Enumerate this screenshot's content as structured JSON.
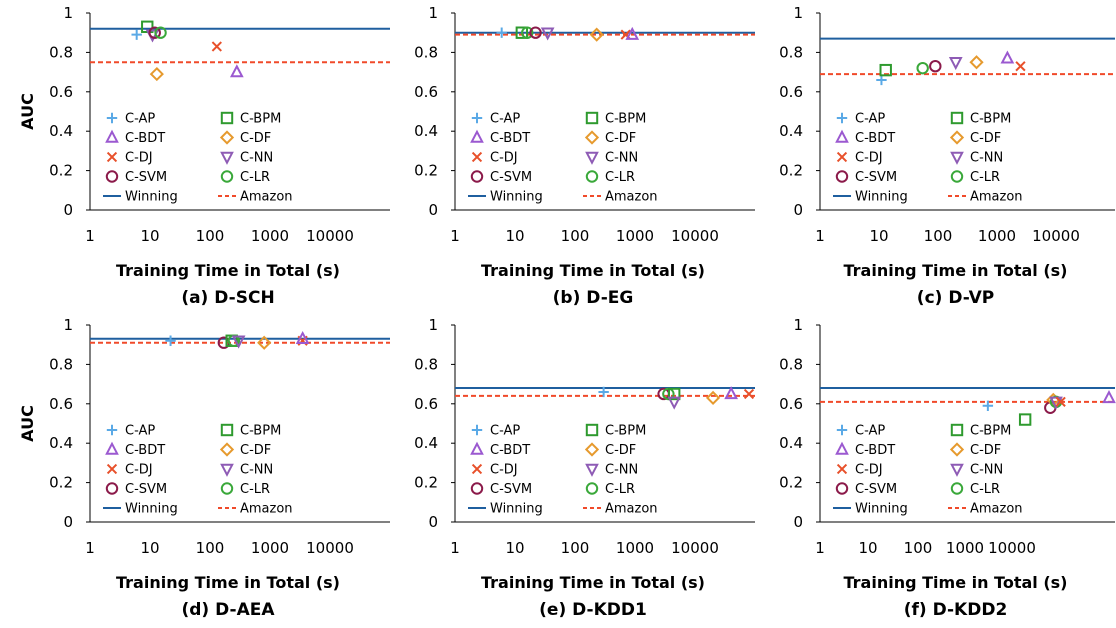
{
  "styles": {
    "C-AP": {
      "marker": "plus",
      "color": "#5aa9e6"
    },
    "C-BPM": {
      "marker": "square",
      "color": "#2e9a2e"
    },
    "C-BDT": {
      "marker": "triangle",
      "color": "#9b59d0"
    },
    "C-DF": {
      "marker": "diamond",
      "color": "#e69a2e"
    },
    "C-DJ": {
      "marker": "x",
      "color": "#e8502a"
    },
    "C-NN": {
      "marker": "tridown",
      "color": "#8e5bb5"
    },
    "C-SVM": {
      "marker": "circle",
      "color": "#8b1a4a"
    },
    "C-LR": {
      "marker": "circle",
      "color": "#3aa83a"
    },
    "Winning": {
      "line": "solid",
      "color": "#1f5f9f"
    },
    "Amazon": {
      "line": "dashed",
      "color": "#f04a2a"
    }
  },
  "chart_data": [
    {
      "type": "scatter",
      "caption": "(a) D-SCH",
      "xlabel": "Training Time in Total (s)",
      "ylabel": "AUC",
      "xscale": "log",
      "xlim": [
        1,
        100000
      ],
      "ylim": [
        0,
        1
      ],
      "xticks": [
        "1",
        "10",
        "100",
        "1000",
        "10000"
      ],
      "yticks": [
        "0",
        "0.2",
        "0.4",
        "0.6",
        "0.8",
        "1"
      ],
      "legend": "lower-left",
      "winning": 0.92,
      "amazon": 0.75,
      "points": [
        {
          "series": "C-AP",
          "x": 6,
          "y": 0.89
        },
        {
          "series": "C-BPM",
          "x": 9,
          "y": 0.93
        },
        {
          "series": "C-NN",
          "x": 11,
          "y": 0.89
        },
        {
          "series": "C-SVM",
          "x": 12,
          "y": 0.9
        },
        {
          "series": "C-LR",
          "x": 15,
          "y": 0.9
        },
        {
          "series": "C-DF",
          "x": 13,
          "y": 0.69
        },
        {
          "series": "C-DJ",
          "x": 130,
          "y": 0.83
        },
        {
          "series": "C-BDT",
          "x": 280,
          "y": 0.7
        }
      ]
    },
    {
      "type": "scatter",
      "caption": "(b) D-EG",
      "xlabel": "Training Time in Total (s)",
      "ylabel": "",
      "xscale": "log",
      "xlim": [
        1,
        100000
      ],
      "ylim": [
        0,
        1
      ],
      "xticks": [
        "1",
        "10",
        "100",
        "1000",
        "10000"
      ],
      "yticks": [
        "0",
        "0.2",
        "0.4",
        "0.6",
        "0.8",
        "1"
      ],
      "legend": "lower-left",
      "winning": 0.9,
      "amazon": 0.89,
      "points": [
        {
          "series": "C-AP",
          "x": 6,
          "y": 0.9
        },
        {
          "series": "C-BPM",
          "x": 13,
          "y": 0.9
        },
        {
          "series": "C-LR",
          "x": 16,
          "y": 0.9
        },
        {
          "series": "C-SVM",
          "x": 22,
          "y": 0.9
        },
        {
          "series": "C-NN",
          "x": 35,
          "y": 0.9
        },
        {
          "series": "C-DF",
          "x": 230,
          "y": 0.89
        },
        {
          "series": "C-DJ",
          "x": 700,
          "y": 0.89
        },
        {
          "series": "C-BDT",
          "x": 900,
          "y": 0.89
        }
      ]
    },
    {
      "type": "scatter",
      "caption": "(c) D-VP",
      "xlabel": "Training Time in Total (s)",
      "ylabel": "",
      "xscale": "log",
      "xlim": [
        1,
        100000
      ],
      "ylim": [
        0,
        1
      ],
      "xticks": [
        "1",
        "10",
        "100",
        "1000",
        "10000"
      ],
      "yticks": [
        "0",
        "0.2",
        "0.4",
        "0.6",
        "0.8",
        "1"
      ],
      "legend": "lower-left",
      "winning": 0.87,
      "amazon": 0.69,
      "points": [
        {
          "series": "C-AP",
          "x": 11,
          "y": 0.66
        },
        {
          "series": "C-BPM",
          "x": 13,
          "y": 0.71
        },
        {
          "series": "C-LR",
          "x": 55,
          "y": 0.72
        },
        {
          "series": "C-SVM",
          "x": 90,
          "y": 0.73
        },
        {
          "series": "C-NN",
          "x": 200,
          "y": 0.75
        },
        {
          "series": "C-DF",
          "x": 450,
          "y": 0.75
        },
        {
          "series": "C-BDT",
          "x": 1500,
          "y": 0.77
        },
        {
          "series": "C-DJ",
          "x": 2500,
          "y": 0.73
        }
      ]
    },
    {
      "type": "scatter",
      "caption": "(d) D-AEA",
      "xlabel": "Training Time in Total (s)",
      "ylabel": "AUC",
      "xscale": "log",
      "xlim": [
        1,
        100000
      ],
      "ylim": [
        0,
        1
      ],
      "xticks": [
        "1",
        "10",
        "100",
        "1000",
        "10000"
      ],
      "yticks": [
        "0",
        "0.2",
        "0.4",
        "0.6",
        "0.8",
        "1"
      ],
      "legend": "lower-left",
      "winning": 0.93,
      "amazon": 0.91,
      "points": [
        {
          "series": "C-AP",
          "x": 22,
          "y": 0.92
        },
        {
          "series": "C-SVM",
          "x": 170,
          "y": 0.91
        },
        {
          "series": "C-BPM",
          "x": 230,
          "y": 0.92
        },
        {
          "series": "C-LR",
          "x": 250,
          "y": 0.92
        },
        {
          "series": "C-NN",
          "x": 300,
          "y": 0.92
        },
        {
          "series": "C-DF",
          "x": 800,
          "y": 0.91
        },
        {
          "series": "C-DJ",
          "x": 3500,
          "y": 0.92
        },
        {
          "series": "C-BDT",
          "x": 3500,
          "y": 0.93
        }
      ]
    },
    {
      "type": "scatter",
      "caption": "(e) D-KDD1",
      "xlabel": "Training Time in Total (s)",
      "ylabel": "",
      "xscale": "log",
      "xlim": [
        1,
        100000
      ],
      "ylim": [
        0,
        1
      ],
      "xticks": [
        "1",
        "10",
        "100",
        "1000",
        "10000"
      ],
      "yticks": [
        "0",
        "0.2",
        "0.4",
        "0.6",
        "0.8",
        "1"
      ],
      "legend": "lower-left",
      "winning": 0.68,
      "amazon": 0.64,
      "points": [
        {
          "series": "C-AP",
          "x": 300,
          "y": 0.66
        },
        {
          "series": "C-SVM",
          "x": 3000,
          "y": 0.65
        },
        {
          "series": "C-LR",
          "x": 3600,
          "y": 0.65
        },
        {
          "series": "C-BPM",
          "x": 4500,
          "y": 0.65
        },
        {
          "series": "C-NN",
          "x": 4500,
          "y": 0.61
        },
        {
          "series": "C-DF",
          "x": 20000,
          "y": 0.63
        },
        {
          "series": "C-BDT",
          "x": 40000,
          "y": 0.65
        },
        {
          "series": "C-DJ",
          "x": 90000,
          "y": 0.65
        }
      ]
    },
    {
      "type": "scatter",
      "caption": "(f) D-KDD2",
      "xlabel": "Training Time in Total (s)",
      "ylabel": "",
      "xscale": "log",
      "xlim": [
        1,
        100000
      ],
      "ylim": [
        0,
        1
      ],
      "xticks": [
        "1",
        "10",
        "100",
        "1000",
        "10000"
      ],
      "yticks": [
        "0",
        "0.2",
        "0.4",
        "0.6",
        "0.8",
        "1"
      ],
      "legend": "lower-left",
      "winning": 0.68,
      "amazon": 0.61,
      "points": [
        {
          "series": "C-AP",
          "x": 700,
          "y": 0.59
        },
        {
          "series": "C-BPM",
          "x": 3000,
          "y": 0.52
        },
        {
          "series": "C-SVM",
          "x": 8000,
          "y": 0.58
        },
        {
          "series": "C-DF",
          "x": 9000,
          "y": 0.62
        },
        {
          "series": "C-LR",
          "x": 10000,
          "y": 0.61
        },
        {
          "series": "C-NN",
          "x": 10000,
          "y": 0.61
        },
        {
          "series": "C-DJ",
          "x": 12000,
          "y": 0.61
        },
        {
          "series": "C-BDT",
          "x": 90000,
          "y": 0.63
        }
      ]
    }
  ],
  "legend_entries": [
    [
      "C-AP",
      "C-BPM"
    ],
    [
      "C-BDT",
      "C-DF"
    ],
    [
      "C-DJ",
      "C-NN"
    ],
    [
      "C-SVM",
      "C-LR"
    ],
    [
      "Winning",
      "Amazon"
    ]
  ]
}
